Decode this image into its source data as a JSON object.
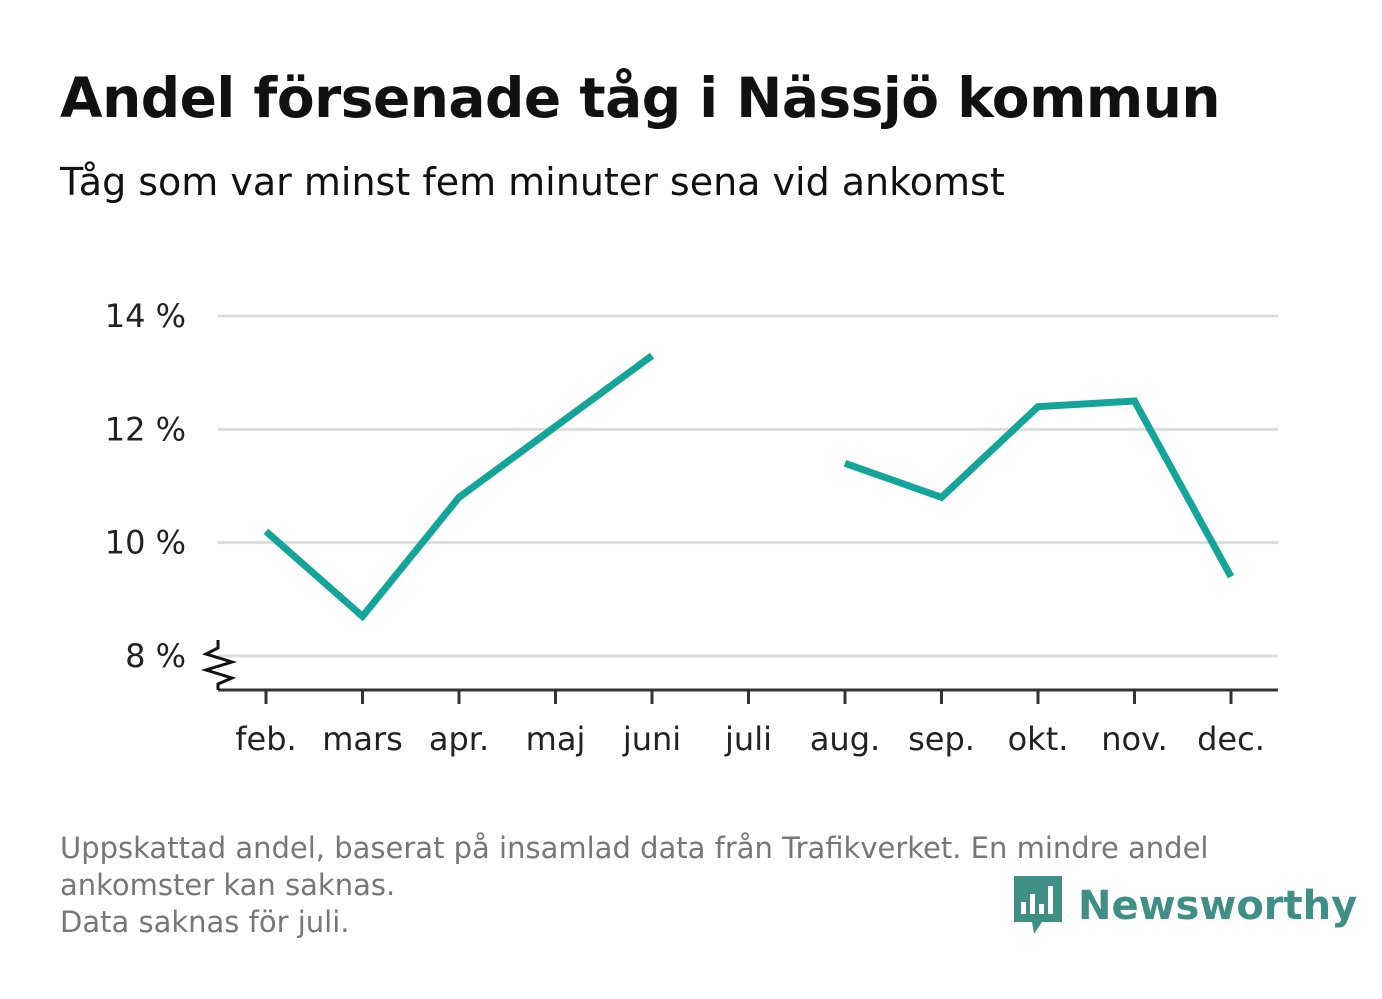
{
  "header": {
    "title": "Andel försenade tåg i Nässjö kommun",
    "subtitle": "Tåg som var minst fem minuter sena vid ankomst"
  },
  "footer": {
    "note_lines": [
      "Uppskattad andel, baserat på insamlad data från Trafikverket. En mindre andel",
      "ankomster kan saknas.",
      "Data saknas för juli."
    ],
    "brand": "Newsworthy"
  },
  "colors": {
    "line": "#14a59a",
    "grid": "#dddddd",
    "axis": "#333333",
    "brand": "#3f8f86"
  },
  "icons": {
    "brand_logo": "bar-chart-bubble-icon",
    "axis_break": "axis-break-icon"
  },
  "chart_data": {
    "type": "line",
    "title": "Andel försenade tåg i Nässjö kommun",
    "subtitle": "Tåg som var minst fem minuter sena vid ankomst",
    "categories": [
      "feb.",
      "mars",
      "apr.",
      "maj",
      "juni",
      "juli",
      "aug.",
      "sep.",
      "okt.",
      "nov.",
      "dec."
    ],
    "series": [
      {
        "values": [
          10.2,
          8.7,
          10.8,
          12.05,
          13.3,
          null,
          11.4,
          10.8,
          12.4,
          12.5,
          9.4
        ]
      }
    ],
    "ylim": [
      7.4,
      14
    ],
    "yticks": [
      8,
      10,
      12,
      14
    ],
    "ytick_labels": [
      "8 %",
      "10 %",
      "12 %",
      "14 %"
    ],
    "grid": true,
    "axis_break": true
  }
}
